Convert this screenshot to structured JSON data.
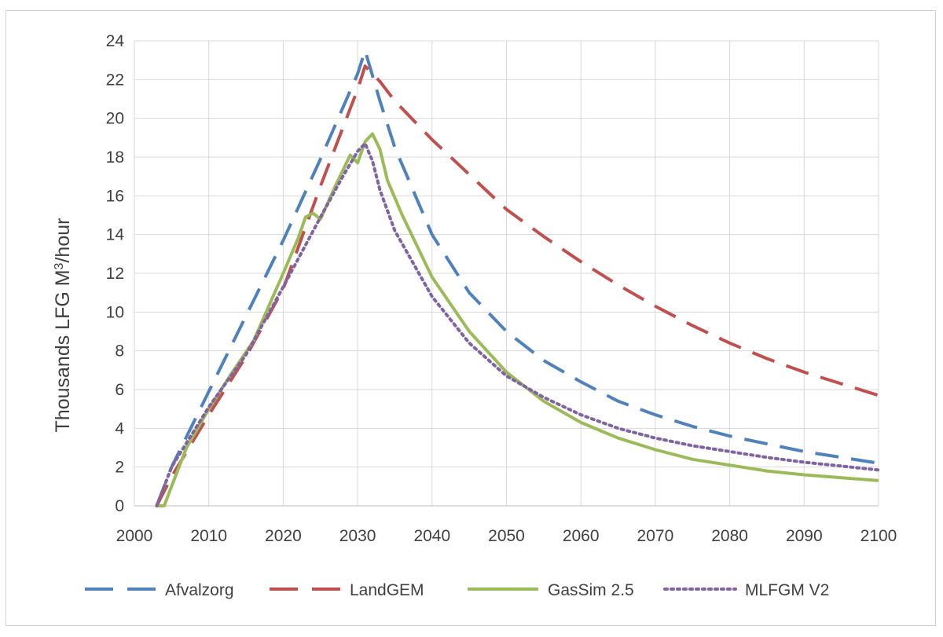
{
  "chart_data": {
    "type": "line",
    "title": "",
    "xlabel": "",
    "ylabel_prefix": "Thousands LFG M",
    "ylabel_superscript": "3",
    "ylabel_suffix": "/hour",
    "xlim": [
      2000,
      2100
    ],
    "ylim": [
      0,
      24
    ],
    "x_ticks": [
      "2000",
      "2010",
      "2020",
      "2030",
      "2040",
      "2050",
      "2060",
      "2070",
      "2080",
      "2090",
      "2100"
    ],
    "y_ticks": [
      "0",
      "2",
      "4",
      "6",
      "8",
      "10",
      "12",
      "14",
      "16",
      "18",
      "20",
      "22",
      "24"
    ],
    "grid": true,
    "legend_position": "bottom",
    "series": [
      {
        "name": "Afvalzorg",
        "color": "#4f81bd",
        "style": "dashed",
        "x": [
          2003,
          2005,
          2010,
          2015,
          2020,
          2025,
          2030,
          2031,
          2033,
          2035,
          2040,
          2045,
          2050,
          2055,
          2060,
          2065,
          2070,
          2075,
          2080,
          2085,
          2090,
          2095,
          2100
        ],
        "y": [
          0,
          2.0,
          5.9,
          9.8,
          13.7,
          17.9,
          22.3,
          23.5,
          20.9,
          18.5,
          14.0,
          11.0,
          9.0,
          7.5,
          6.4,
          5.4,
          4.7,
          4.1,
          3.6,
          3.2,
          2.8,
          2.5,
          2.2
        ]
      },
      {
        "name": "LandGEM",
        "color": "#c0504d",
        "style": "dashed",
        "x": [
          2003,
          2005,
          2010,
          2015,
          2020,
          2025,
          2030,
          2031,
          2033,
          2035,
          2040,
          2045,
          2050,
          2055,
          2060,
          2065,
          2070,
          2075,
          2080,
          2085,
          2090,
          2095,
          2100
        ],
        "y": [
          0,
          1.5,
          4.7,
          7.7,
          11.2,
          16.5,
          21.5,
          22.7,
          21.9,
          20.9,
          18.9,
          17.1,
          15.3,
          13.9,
          12.6,
          11.4,
          10.3,
          9.3,
          8.4,
          7.6,
          6.9,
          6.3,
          5.7
        ]
      },
      {
        "name": "GasSim 2.5",
        "color": "#9bbb59",
        "style": "solid",
        "x": [
          2003,
          2004,
          2005,
          2007,
          2010,
          2013,
          2016,
          2020,
          2022,
          2023,
          2024,
          2025,
          2027,
          2029,
          2030,
          2031,
          2032,
          2033,
          2034,
          2036,
          2040,
          2045,
          2050,
          2055,
          2060,
          2065,
          2070,
          2075,
          2080,
          2085,
          2090,
          2095,
          2100
        ],
        "y": [
          0,
          0,
          1.0,
          3.0,
          5.0,
          6.8,
          8.5,
          12.0,
          13.8,
          14.9,
          15.1,
          14.8,
          16.5,
          18.1,
          17.7,
          18.8,
          19.2,
          18.4,
          16.8,
          15.0,
          11.8,
          9.0,
          6.9,
          5.4,
          4.3,
          3.5,
          2.9,
          2.4,
          2.1,
          1.8,
          1.6,
          1.45,
          1.3
        ]
      },
      {
        "name": "MLFGM V2",
        "color": "#8064a2",
        "style": "dotted",
        "x": [
          2003,
          2005,
          2010,
          2015,
          2020,
          2025,
          2028,
          2030,
          2031,
          2032,
          2033,
          2035,
          2040,
          2045,
          2050,
          2055,
          2060,
          2065,
          2070,
          2075,
          2080,
          2085,
          2090,
          2095,
          2100
        ],
        "y": [
          0,
          2.0,
          5.1,
          7.8,
          11.3,
          14.9,
          17.0,
          18.3,
          18.7,
          17.8,
          16.3,
          14.2,
          10.8,
          8.4,
          6.7,
          5.6,
          4.7,
          4.0,
          3.5,
          3.1,
          2.8,
          2.5,
          2.25,
          2.05,
          1.85
        ]
      }
    ]
  }
}
